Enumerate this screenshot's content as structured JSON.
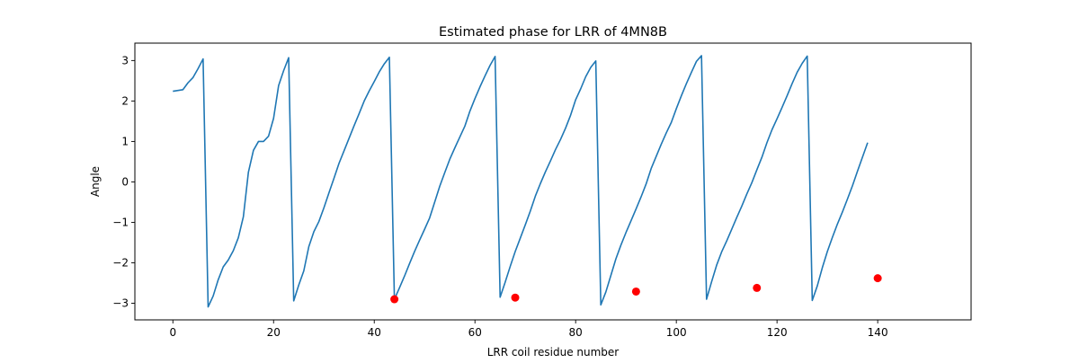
{
  "chart_data": {
    "type": "line",
    "title": "Estimated phase for LRR of 4MN8B",
    "xlabel": "LRR coil residue number",
    "ylabel": "Angle",
    "xlim": [
      -7.55,
      158.55
    ],
    "ylim": [
      -3.41,
      3.43
    ],
    "xticks": [
      0,
      20,
      40,
      60,
      80,
      100,
      120,
      140
    ],
    "yticks": [
      -3,
      -2,
      -1,
      0,
      1,
      2,
      3
    ],
    "ytick_labels": [
      "−3",
      "−2",
      "−1",
      "0",
      "1",
      "2",
      "3"
    ],
    "grid": false,
    "line_color": "#1f77b4",
    "marker_color": "#ff0000",
    "series": [
      {
        "points": [
          [
            0,
            2.24
          ],
          [
            1,
            2.26
          ],
          [
            2,
            2.28
          ],
          [
            3,
            2.45
          ],
          [
            4,
            2.58
          ],
          [
            5,
            2.8
          ],
          [
            6,
            3.04
          ],
          [
            7,
            -3.09
          ],
          [
            8,
            -2.82
          ],
          [
            9,
            -2.42
          ],
          [
            10,
            -2.1
          ],
          [
            11,
            -1.93
          ],
          [
            12,
            -1.7
          ],
          [
            13,
            -1.38
          ],
          [
            14,
            -0.86
          ],
          [
            15,
            0.24
          ],
          [
            16,
            0.78
          ],
          [
            17,
            1.0
          ],
          [
            18,
            1.0
          ],
          [
            19,
            1.13
          ],
          [
            20,
            1.57
          ],
          [
            21,
            2.38
          ],
          [
            22,
            2.75
          ],
          [
            23,
            3.07
          ],
          [
            24,
            -2.94
          ],
          [
            25,
            -2.55
          ],
          [
            26,
            -2.2
          ],
          [
            27,
            -1.6
          ],
          [
            28,
            -1.23
          ],
          [
            29,
            -0.98
          ],
          [
            30,
            -0.64
          ],
          [
            31,
            -0.27
          ],
          [
            32,
            0.09
          ],
          [
            33,
            0.46
          ],
          [
            34,
            0.77
          ],
          [
            35,
            1.08
          ],
          [
            36,
            1.39
          ],
          [
            37,
            1.69
          ],
          [
            38,
            2.0
          ],
          [
            39,
            2.25
          ],
          [
            40,
            2.48
          ],
          [
            41,
            2.72
          ],
          [
            42,
            2.92
          ],
          [
            43,
            3.08
          ],
          [
            44,
            -2.9
          ],
          [
            45,
            -2.62
          ],
          [
            46,
            -2.33
          ],
          [
            47,
            -2.02
          ],
          [
            48,
            -1.72
          ],
          [
            49,
            -1.44
          ],
          [
            50,
            -1.17
          ],
          [
            51,
            -0.89
          ],
          [
            52,
            -0.5
          ],
          [
            53,
            -0.11
          ],
          [
            54,
            0.23
          ],
          [
            55,
            0.56
          ],
          [
            56,
            0.84
          ],
          [
            57,
            1.11
          ],
          [
            58,
            1.38
          ],
          [
            59,
            1.75
          ],
          [
            60,
            2.06
          ],
          [
            61,
            2.35
          ],
          [
            62,
            2.62
          ],
          [
            63,
            2.88
          ],
          [
            64,
            3.1
          ],
          [
            65,
            -2.85
          ],
          [
            66,
            -2.48
          ],
          [
            67,
            -2.09
          ],
          [
            68,
            -1.72
          ],
          [
            69,
            -1.39
          ],
          [
            70,
            -1.06
          ],
          [
            71,
            -0.72
          ],
          [
            72,
            -0.35
          ],
          [
            73,
            -0.04
          ],
          [
            74,
            0.25
          ],
          [
            75,
            0.52
          ],
          [
            76,
            0.8
          ],
          [
            77,
            1.05
          ],
          [
            78,
            1.33
          ],
          [
            79,
            1.65
          ],
          [
            80,
            2.03
          ],
          [
            81,
            2.3
          ],
          [
            82,
            2.6
          ],
          [
            83,
            2.83
          ],
          [
            84,
            2.99
          ],
          [
            85,
            -3.04
          ],
          [
            86,
            -2.72
          ],
          [
            87,
            -2.31
          ],
          [
            88,
            -1.9
          ],
          [
            89,
            -1.56
          ],
          [
            90,
            -1.25
          ],
          [
            91,
            -0.96
          ],
          [
            92,
            -0.67
          ],
          [
            93,
            -0.37
          ],
          [
            94,
            -0.05
          ],
          [
            95,
            0.33
          ],
          [
            96,
            0.63
          ],
          [
            97,
            0.93
          ],
          [
            98,
            1.21
          ],
          [
            99,
            1.47
          ],
          [
            100,
            1.81
          ],
          [
            101,
            2.13
          ],
          [
            102,
            2.43
          ],
          [
            103,
            2.71
          ],
          [
            104,
            2.98
          ],
          [
            105,
            3.12
          ],
          [
            106,
            -2.9
          ],
          [
            107,
            -2.47
          ],
          [
            108,
            -2.06
          ],
          [
            109,
            -1.73
          ],
          [
            110,
            -1.46
          ],
          [
            111,
            -1.17
          ],
          [
            112,
            -0.88
          ],
          [
            113,
            -0.6
          ],
          [
            114,
            -0.3
          ],
          [
            115,
            -0.02
          ],
          [
            116,
            0.3
          ],
          [
            117,
            0.61
          ],
          [
            118,
            0.97
          ],
          [
            119,
            1.29
          ],
          [
            120,
            1.56
          ],
          [
            121,
            1.84
          ],
          [
            122,
            2.13
          ],
          [
            123,
            2.43
          ],
          [
            124,
            2.71
          ],
          [
            125,
            2.93
          ],
          [
            126,
            3.11
          ],
          [
            127,
            -2.93
          ],
          [
            128,
            -2.57
          ],
          [
            129,
            -2.12
          ],
          [
            130,
            -1.72
          ],
          [
            131,
            -1.37
          ],
          [
            132,
            -1.04
          ],
          [
            133,
            -0.74
          ],
          [
            134,
            -0.42
          ],
          [
            135,
            -0.09
          ],
          [
            136,
            0.27
          ],
          [
            137,
            0.62
          ],
          [
            138,
            0.97
          ]
        ]
      }
    ],
    "red_points": [
      [
        44,
        -2.9
      ],
      [
        68,
        -2.86
      ],
      [
        92,
        -2.71
      ],
      [
        116,
        -2.62
      ],
      [
        140,
        -2.38
      ]
    ]
  }
}
